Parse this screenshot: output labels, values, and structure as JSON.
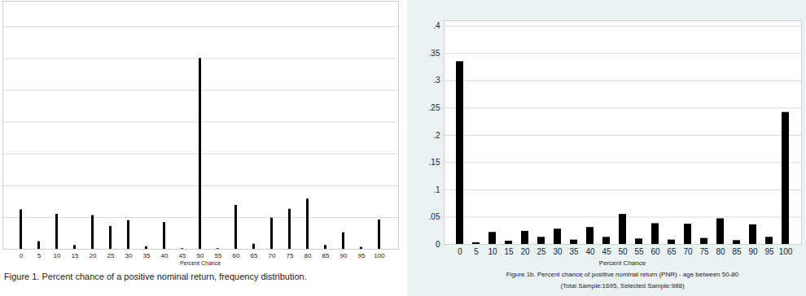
{
  "chart_data": [
    {
      "type": "bar",
      "title": "Figure 1. Percent chance of a positive nominal return, frequency distribution.",
      "xlabel": "Percent Chance",
      "categories": [
        0,
        5,
        10,
        15,
        20,
        25,
        30,
        35,
        40,
        45,
        50,
        55,
        60,
        65,
        70,
        75,
        80,
        85,
        90,
        95,
        100
      ],
      "values": [
        0.062,
        0.012,
        0.055,
        0.006,
        0.053,
        0.036,
        0.045,
        0.004,
        0.042,
        0.001,
        0.3,
        0.001,
        0.069,
        0.008,
        0.049,
        0.063,
        0.079,
        0.006,
        0.026,
        0.003,
        0.046
      ],
      "color": "#000000",
      "ylim": [
        0,
        0.39
      ],
      "yticks": [
        0,
        0.05,
        0.1,
        0.15,
        0.2,
        0.25,
        0.3,
        0.35
      ],
      "grid": true,
      "tick_labels": "x"
    },
    {
      "type": "bar",
      "title": "Figure 1b. Percent chance of positive nominal return (PNR) - age between 50-80",
      "subtitle": "(Total Sample:1695, Selected Sample:988)",
      "xlabel": "Percent Chance",
      "categories": [
        0,
        5,
        10,
        15,
        20,
        25,
        30,
        35,
        40,
        45,
        50,
        55,
        60,
        65,
        70,
        75,
        80,
        85,
        90,
        95,
        100
      ],
      "values": [
        0.335,
        0.003,
        0.022,
        0.006,
        0.024,
        0.013,
        0.028,
        0.008,
        0.031,
        0.013,
        0.055,
        0.01,
        0.038,
        0.008,
        0.037,
        0.011,
        0.047,
        0.007,
        0.036,
        0.013,
        0.242
      ],
      "color": "#000000",
      "ylim": [
        0,
        0.41
      ],
      "yticks": [
        0,
        {
          "value": 0.05,
          "label": ".05"
        },
        {
          "value": 0.1,
          "label": ".1"
        },
        {
          "value": 0.15,
          "label": ".15"
        },
        {
          "value": 0.2,
          "label": ".2"
        },
        {
          "value": 0.25,
          "label": ".25"
        },
        {
          "value": 0.3,
          "label": ".3"
        },
        {
          "value": 0.35,
          "label": ".35"
        },
        {
          "value": 0.4,
          "label": ".4"
        }
      ],
      "grid": true,
      "tick_labels": true
    }
  ]
}
